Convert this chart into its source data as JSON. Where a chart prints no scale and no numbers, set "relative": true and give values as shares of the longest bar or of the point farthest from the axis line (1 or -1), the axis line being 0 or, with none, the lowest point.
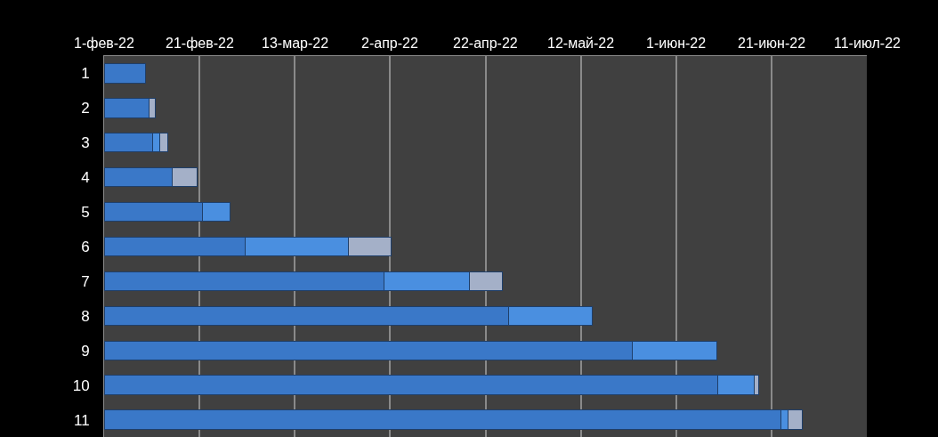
{
  "chart_data": {
    "type": "bar",
    "orientation": "horizontal",
    "stacked": true,
    "relative": true,
    "categories": [
      "1",
      "2",
      "3",
      "4",
      "5",
      "6",
      "7",
      "8",
      "9",
      "10",
      "11"
    ],
    "series": [
      {
        "color": "#3a78c8",
        "values": [
          0.059,
          0.064,
          0.069,
          0.098,
          0.141,
          0.202,
          0.401,
          0.58,
          0.757,
          0.88,
          0.97
        ]
      },
      {
        "color": "#4a8fe0",
        "values": [
          null,
          null,
          0.011,
          null,
          0.04,
          0.148,
          0.122,
          0.12,
          0.121,
          0.052,
          0.01
        ]
      },
      {
        "color": "#a4b0c8",
        "values": [
          null,
          0.009,
          0.011,
          0.035,
          null,
          0.061,
          0.048,
          null,
          null,
          0.006,
          0.02
        ]
      }
    ],
    "annotations": [
      "1-фев-22",
      "21-фев-22",
      "13-мар-22",
      "2-апр-22",
      "22-апр-22",
      "12-май-22",
      "1-июн-22",
      "21-июн-22",
      "11-июл-22"
    ],
    "grid": "x"
  }
}
